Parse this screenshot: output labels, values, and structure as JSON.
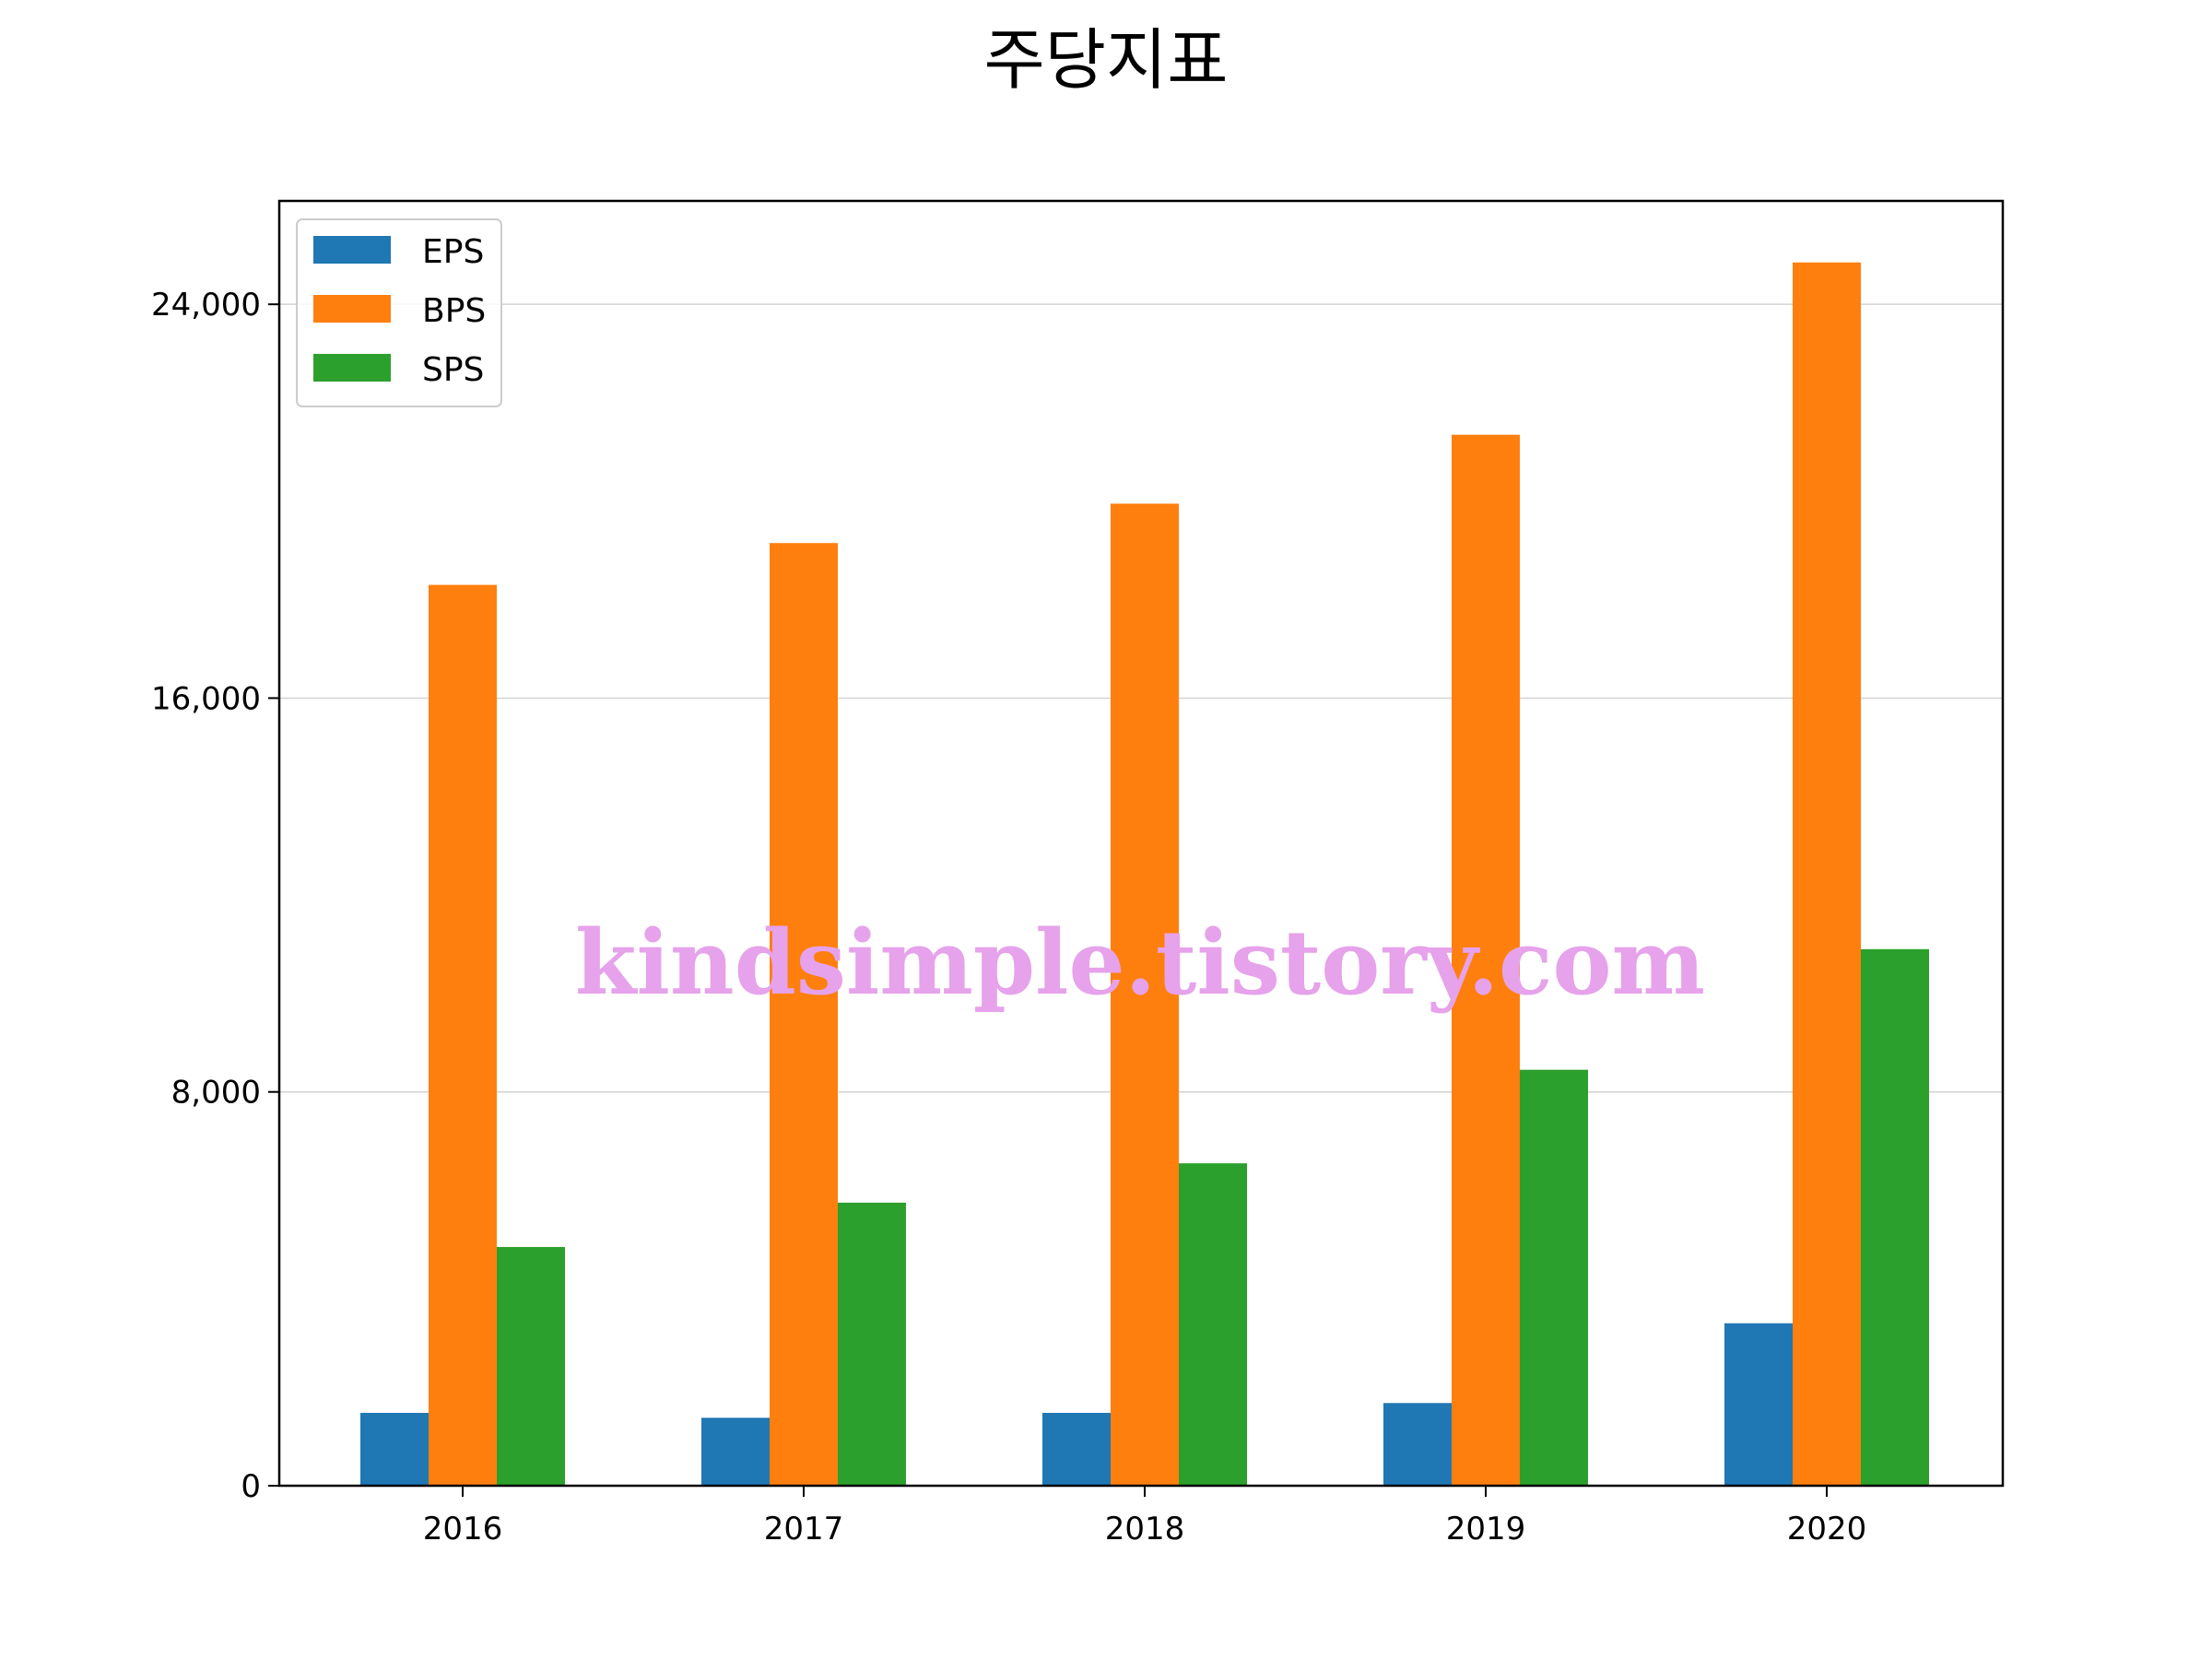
{
  "chart_data": {
    "type": "bar",
    "title": "주당지표",
    "xlabel": "",
    "ylabel": "",
    "categories": [
      "2016",
      "2017",
      "2018",
      "2019",
      "2020"
    ],
    "series": [
      {
        "name": "EPS",
        "color": "#1f77b4",
        "values": [
          1480,
          1380,
          1480,
          1680,
          3300
        ]
      },
      {
        "name": "BPS",
        "color": "#ff7f0e",
        "values": [
          18300,
          19150,
          19950,
          21350,
          24850
        ]
      },
      {
        "name": "SPS",
        "color": "#2ca02c",
        "values": [
          4850,
          5750,
          6550,
          8450,
          10900
        ]
      }
    ],
    "ylim": [
      0,
      26100
    ],
    "yticks": [
      0,
      8000,
      16000,
      24000
    ],
    "ytick_labels": [
      "0",
      "8,000",
      "16,000",
      "24,000"
    ],
    "grid": "horizontal",
    "legend_position": "top-left",
    "watermark": "kindsimple.tistory.com"
  }
}
